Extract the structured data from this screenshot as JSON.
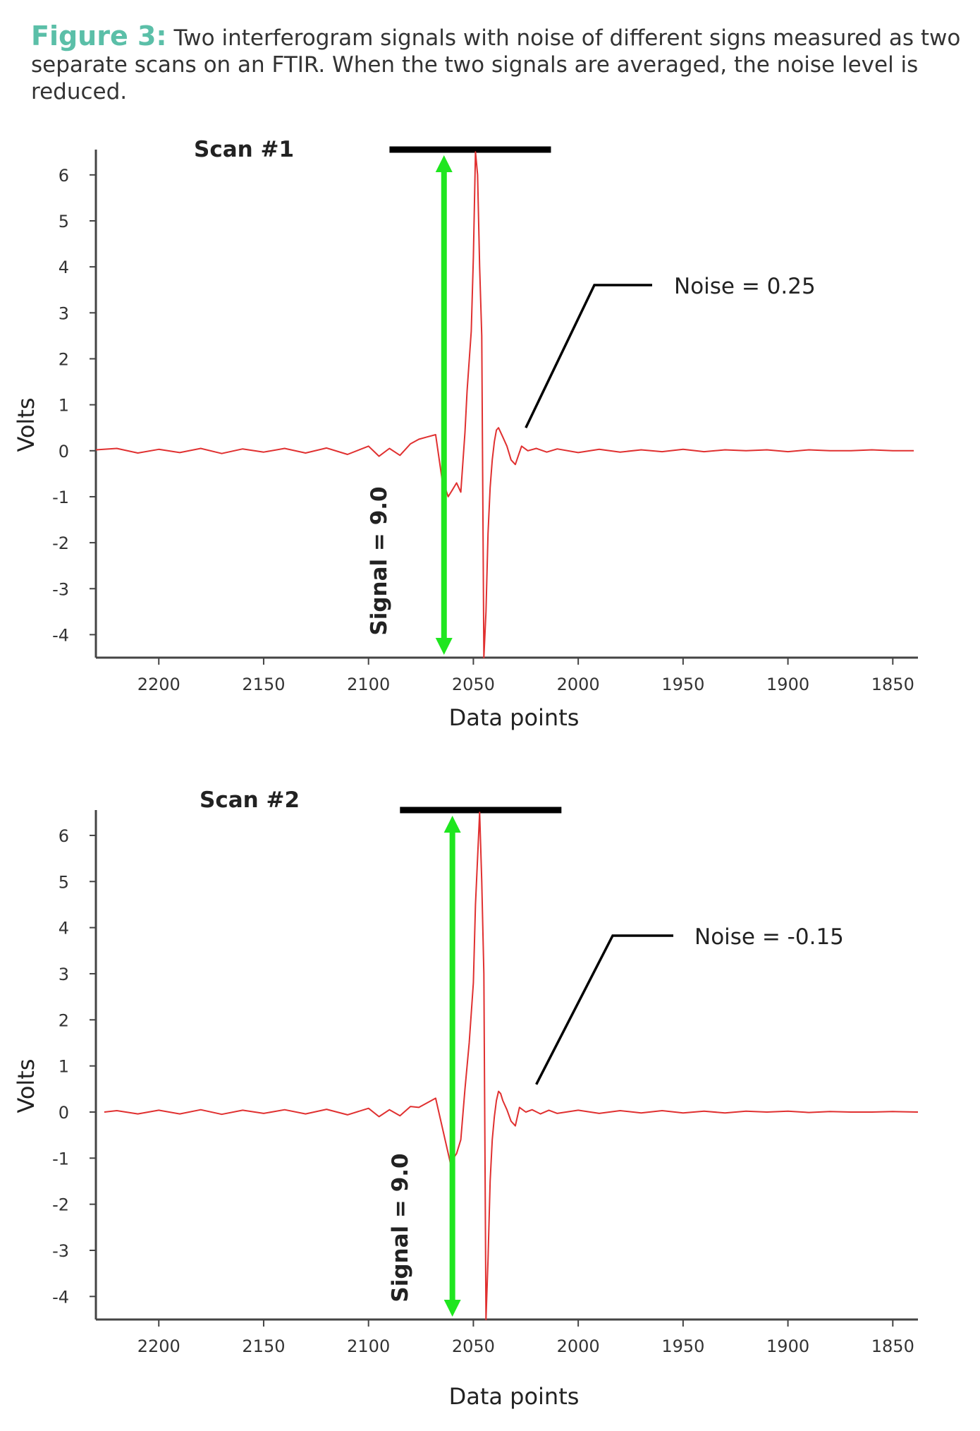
{
  "caption": {
    "label": "Figure 3:",
    "text": " Two interferogram signals with noise of different signs measured as two separate scans on an FTIR. When the two signals are averaged, the noise level is reduced."
  },
  "colors": {
    "caption_label": "#5bbfa8",
    "trace": "#e03030",
    "signal_arrow": "#1fe61f",
    "annotation": "#000000",
    "axis": "#444444"
  },
  "chart_data": [
    {
      "type": "line",
      "title": "Scan #1",
      "xlabel": "Data points",
      "ylabel": "Volts",
      "x_reversed": true,
      "xlim": [
        2230,
        1838
      ],
      "ylim": [
        -4.5,
        6.55
      ],
      "x_ticks": [
        2200,
        2150,
        2100,
        2050,
        2000,
        1950,
        1900,
        1850
      ],
      "y_ticks": [
        6,
        5,
        4,
        3,
        2,
        1,
        0,
        -1,
        -2,
        -3,
        -4
      ],
      "noise_label": "Noise = 0.25",
      "signal_label": "Signal = 9.0",
      "signal_bar_x_range": [
        2090,
        2013
      ],
      "signal_arrow_x": 2064,
      "noise_pointer_x": 2025,
      "noise_pointer_y": 0.5,
      "series": [
        {
          "name": "Scan #1",
          "x": [
            2230,
            2220,
            2210,
            2200,
            2190,
            2180,
            2170,
            2160,
            2150,
            2140,
            2130,
            2120,
            2110,
            2100,
            2095,
            2090,
            2085,
            2080,
            2076,
            2072,
            2068,
            2065,
            2062,
            2060,
            2058,
            2056,
            2054,
            2053,
            2051,
            2050,
            2049,
            2048,
            2047,
            2046,
            2045,
            2044,
            2043,
            2042,
            2041,
            2040,
            2039,
            2038,
            2036,
            2034,
            2032,
            2030,
            2027,
            2024,
            2020,
            2015,
            2010,
            2000,
            1990,
            1980,
            1970,
            1960,
            1950,
            1940,
            1930,
            1920,
            1910,
            1900,
            1890,
            1880,
            1870,
            1860,
            1850,
            1840
          ],
          "y": [
            0.02,
            0.05,
            -0.05,
            0.03,
            -0.04,
            0.05,
            -0.06,
            0.04,
            -0.03,
            0.05,
            -0.05,
            0.06,
            -0.08,
            0.1,
            -0.12,
            0.05,
            -0.1,
            0.15,
            0.25,
            0.3,
            0.35,
            -0.6,
            -1.0,
            -0.85,
            -0.7,
            -0.9,
            0.4,
            1.3,
            2.6,
            4.2,
            6.5,
            6.0,
            4.0,
            2.5,
            -4.5,
            -3.5,
            -1.8,
            -0.8,
            -0.2,
            0.2,
            0.45,
            0.5,
            0.3,
            0.1,
            -0.2,
            -0.3,
            0.1,
            0.0,
            0.05,
            -0.03,
            0.04,
            -0.04,
            0.03,
            -0.03,
            0.02,
            -0.02,
            0.03,
            -0.02,
            0.02,
            0.0,
            0.02,
            -0.02,
            0.02,
            0.0,
            0.0,
            0.02,
            0.0,
            0.0
          ]
        }
      ]
    },
    {
      "type": "line",
      "title": "Scan #2",
      "xlabel": "Data points",
      "ylabel": "Volts",
      "x_reversed": true,
      "xlim": [
        2230,
        1838
      ],
      "ylim": [
        -4.5,
        6.55
      ],
      "x_ticks": [
        2200,
        2150,
        2100,
        2050,
        2000,
        1950,
        1900,
        1850
      ],
      "y_ticks": [
        6,
        5,
        4,
        3,
        2,
        1,
        0,
        -1,
        -2,
        -3,
        -4
      ],
      "noise_label": "Noise = -0.15",
      "signal_label": "Signal = 9.0",
      "signal_bar_x_range": [
        2085,
        2008
      ],
      "signal_arrow_x": 2060,
      "noise_pointer_x": 2020,
      "noise_pointer_y": 0.6,
      "series": [
        {
          "name": "Scan #2",
          "x": [
            2226,
            2220,
            2210,
            2200,
            2190,
            2180,
            2170,
            2160,
            2150,
            2140,
            2130,
            2120,
            2110,
            2100,
            2095,
            2090,
            2085,
            2080,
            2076,
            2072,
            2068,
            2064,
            2061,
            2058,
            2056,
            2054,
            2052,
            2050,
            2049,
            2047,
            2046,
            2045,
            2044,
            2043,
            2042,
            2041,
            2040,
            2039,
            2038,
            2037,
            2036,
            2034,
            2032,
            2030,
            2028,
            2025,
            2022,
            2018,
            2014,
            2010,
            2000,
            1990,
            1980,
            1970,
            1960,
            1950,
            1940,
            1930,
            1920,
            1910,
            1900,
            1890,
            1880,
            1870,
            1860,
            1850,
            1838
          ],
          "y": [
            0.0,
            0.03,
            -0.04,
            0.04,
            -0.04,
            0.05,
            -0.05,
            0.04,
            -0.03,
            0.05,
            -0.04,
            0.06,
            -0.06,
            0.08,
            -0.1,
            0.05,
            -0.08,
            0.12,
            0.1,
            0.2,
            0.3,
            -0.5,
            -1.1,
            -0.9,
            -0.6,
            0.5,
            1.5,
            2.8,
            4.5,
            6.5,
            5.0,
            3.0,
            -4.5,
            -3.2,
            -1.5,
            -0.6,
            -0.1,
            0.25,
            0.45,
            0.4,
            0.25,
            0.05,
            -0.2,
            -0.3,
            0.1,
            0.0,
            0.05,
            -0.04,
            0.04,
            -0.03,
            0.04,
            -0.03,
            0.03,
            -0.02,
            0.03,
            -0.02,
            0.02,
            -0.02,
            0.02,
            0.0,
            0.02,
            -0.01,
            0.01,
            0.0,
            0.0,
            0.01,
            0.0
          ]
        }
      ]
    }
  ]
}
